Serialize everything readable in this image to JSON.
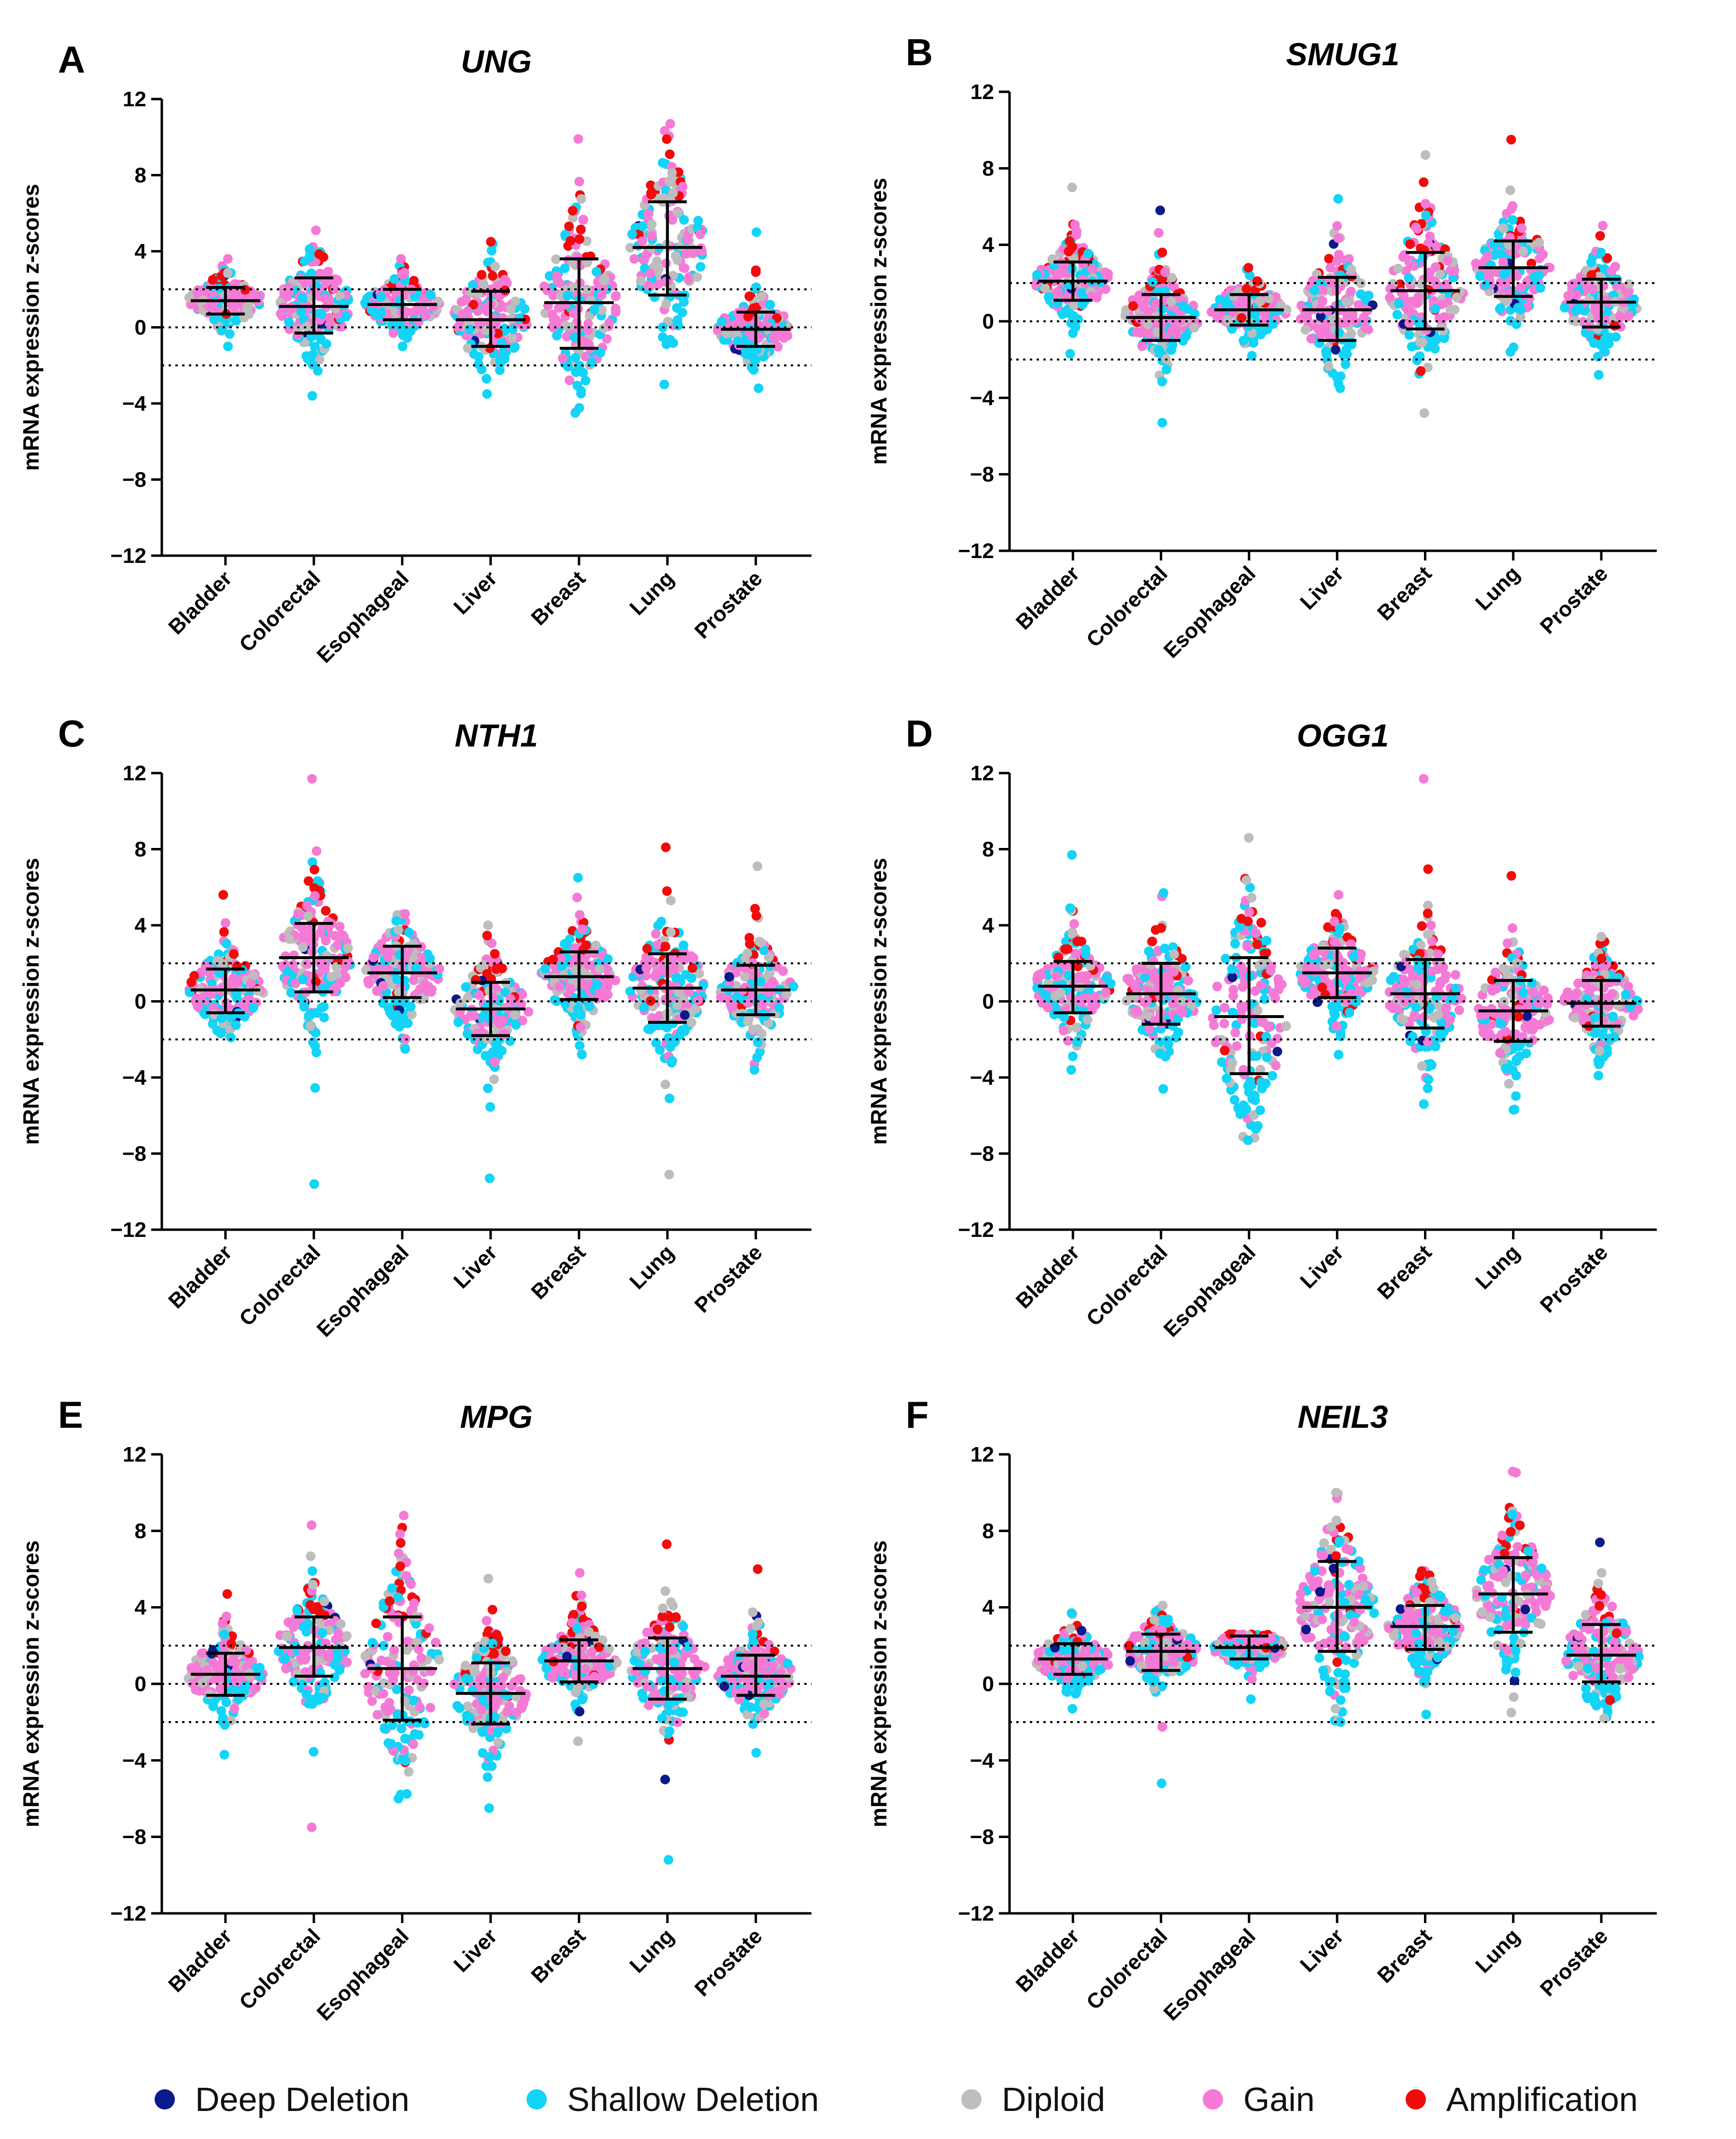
{
  "legend": {
    "items": [
      {
        "label": "Deep Deletion",
        "color": "#0b1a8a"
      },
      {
        "label": "Shallow Deletion",
        "color": "#12d4f6"
      },
      {
        "label": "Diploid",
        "color": "#bdbdbd"
      },
      {
        "label": "Gain",
        "color": "#f57ad6"
      },
      {
        "label": "Amplification",
        "color": "#f20b0b"
      }
    ]
  },
  "chart_data": [
    {
      "panel": "A",
      "title": "UNG",
      "type": "scatter",
      "ylabel": "mRNA expression z-scores",
      "ylim": [
        -12,
        12
      ],
      "yticks": [
        "12",
        "8",
        "4",
        "0",
        "−4",
        "−8",
        "−12"
      ],
      "reference_lines": [
        2,
        0,
        -2
      ],
      "categories": [
        "Bladder",
        "Colorectal",
        "Esophageal",
        "Liver",
        "Breast",
        "Lung",
        "Prostate"
      ],
      "mean": [
        1.4,
        1.1,
        1.2,
        0.4,
        1.3,
        4.2,
        -0.1
      ],
      "sd_upper": [
        2.1,
        2.6,
        2.0,
        1.9,
        3.6,
        6.6,
        0.8
      ],
      "sd_lower": [
        0.7,
        -0.3,
        0.4,
        -1.0,
        -1.1,
        1.7,
        -1.0
      ],
      "range_max": [
        3.6,
        5.1,
        3.6,
        4.5,
        9.9,
        10.7,
        5.0
      ],
      "range_min": [
        -1.0,
        -3.6,
        -1.0,
        -3.5,
        -4.5,
        -3.0,
        -3.2
      ]
    },
    {
      "panel": "B",
      "title": "SMUG1",
      "type": "scatter",
      "ylabel": "mRNA expression z-scores",
      "ylim": [
        -12,
        12
      ],
      "yticks": [
        "12",
        "8",
        "4",
        "0",
        "−4",
        "−8",
        "−12"
      ],
      "reference_lines": [
        2,
        0,
        -2
      ],
      "categories": [
        "Bladder",
        "Colorectal",
        "Esophageal",
        "Liver",
        "Breast",
        "Lung",
        "Prostate"
      ],
      "mean": [
        2.1,
        0.2,
        0.6,
        0.6,
        1.6,
        2.8,
        1.0
      ],
      "sd_upper": [
        3.1,
        1.4,
        1.4,
        2.3,
        3.6,
        4.2,
        2.2
      ],
      "sd_lower": [
        1.1,
        -1.0,
        -0.2,
        -1.0,
        -0.4,
        1.3,
        -0.3
      ],
      "range_max": [
        7.0,
        5.8,
        2.8,
        6.4,
        8.7,
        9.5,
        5.0
      ],
      "range_min": [
        -1.7,
        -5.3,
        -1.8,
        -3.5,
        -4.8,
        -1.6,
        -2.8
      ]
    },
    {
      "panel": "C",
      "title": "NTH1",
      "type": "scatter",
      "ylabel": "mRNA expression z-scores",
      "ylim": [
        -12,
        12
      ],
      "yticks": [
        "12",
        "8",
        "4",
        "0",
        "−4",
        "−8",
        "−12"
      ],
      "reference_lines": [
        2,
        0,
        -2
      ],
      "categories": [
        "Bladder",
        "Colorectal",
        "Esophageal",
        "Liver",
        "Breast",
        "Lung",
        "Prostate"
      ],
      "mean": [
        0.6,
        2.3,
        1.5,
        -0.4,
        1.3,
        0.7,
        0.6
      ],
      "sd_upper": [
        1.7,
        4.1,
        2.9,
        1.0,
        2.6,
        2.5,
        1.9
      ],
      "sd_lower": [
        -0.6,
        0.5,
        0.2,
        -1.8,
        0.1,
        -1.1,
        -0.7
      ],
      "range_max": [
        5.6,
        11.7,
        4.6,
        4.0,
        6.5,
        8.1,
        7.1
      ],
      "range_min": [
        -1.9,
        -9.6,
        -2.5,
        -9.3,
        -2.8,
        -9.1,
        -3.6
      ]
    },
    {
      "panel": "D",
      "title": "OGG1",
      "type": "scatter",
      "ylabel": "mRNA expression z-scores",
      "ylim": [
        -12,
        12
      ],
      "yticks": [
        "12",
        "8",
        "4",
        "0",
        "−4",
        "−8",
        "−12"
      ],
      "reference_lines": [
        2,
        0,
        -2
      ],
      "categories": [
        "Bladder",
        "Colorectal",
        "Esophageal",
        "Liver",
        "Breast",
        "Lung",
        "Prostate"
      ],
      "mean": [
        0.8,
        0.4,
        -0.8,
        1.5,
        0.4,
        -0.5,
        -0.1
      ],
      "sd_upper": [
        2.1,
        2.0,
        2.3,
        2.8,
        2.2,
        1.1,
        1.1
      ],
      "sd_lower": [
        -0.6,
        -1.2,
        -3.8,
        0.2,
        -1.4,
        -2.1,
        -1.3
      ],
      "range_max": [
        7.7,
        5.7,
        8.6,
        5.6,
        11.7,
        6.6,
        3.4
      ],
      "range_min": [
        -3.6,
        -4.6,
        -7.3,
        -2.8,
        -5.4,
        -5.7,
        -3.9
      ]
    },
    {
      "panel": "E",
      "title": "MPG",
      "type": "scatter",
      "ylabel": "mRNA expression z-scores",
      "ylim": [
        -12,
        12
      ],
      "yticks": [
        "12",
        "8",
        "4",
        "0",
        "−4",
        "−8",
        "−12"
      ],
      "reference_lines": [
        2,
        0,
        -2
      ],
      "categories": [
        "Bladder",
        "Colorectal",
        "Esophageal",
        "Liver",
        "Breast",
        "Lung",
        "Prostate"
      ],
      "mean": [
        0.5,
        1.9,
        0.8,
        -0.5,
        1.2,
        0.8,
        0.4
      ],
      "sd_upper": [
        1.6,
        3.5,
        3.5,
        1.1,
        2.3,
        2.4,
        1.5
      ],
      "sd_lower": [
        -0.6,
        0.4,
        -1.9,
        -2.1,
        0.1,
        -0.8,
        -0.6
      ],
      "range_max": [
        4.7,
        8.3,
        8.8,
        5.5,
        5.8,
        7.3,
        6.0
      ],
      "range_min": [
        -3.7,
        -7.5,
        -6.0,
        -6.5,
        -3.0,
        -9.2,
        -3.6
      ]
    },
    {
      "panel": "F",
      "title": "NEIL3",
      "type": "scatter",
      "ylabel": "mRNA expression z-scores",
      "ylim": [
        -12,
        12
      ],
      "yticks": [
        "12",
        "8",
        "4",
        "0",
        "−4",
        "−8",
        "−12"
      ],
      "reference_lines": [
        2,
        0,
        -2
      ],
      "categories": [
        "Bladder",
        "Colorectal",
        "Esophageal",
        "Liver",
        "Breast",
        "Lung",
        "Prostate"
      ],
      "mean": [
        1.3,
        1.7,
        1.9,
        4.0,
        3.0,
        4.7,
        1.5
      ],
      "sd_upper": [
        2.1,
        2.6,
        2.5,
        6.4,
        4.1,
        6.6,
        3.1
      ],
      "sd_lower": [
        0.5,
        0.7,
        1.3,
        1.7,
        1.8,
        2.7,
        0.1
      ],
      "range_max": [
        3.7,
        4.1,
        2.6,
        10.0,
        5.9,
        11.1,
        7.4
      ],
      "range_min": [
        -1.3,
        -5.2,
        -0.8,
        -2.0,
        -1.6,
        -1.5,
        -1.8
      ]
    }
  ]
}
